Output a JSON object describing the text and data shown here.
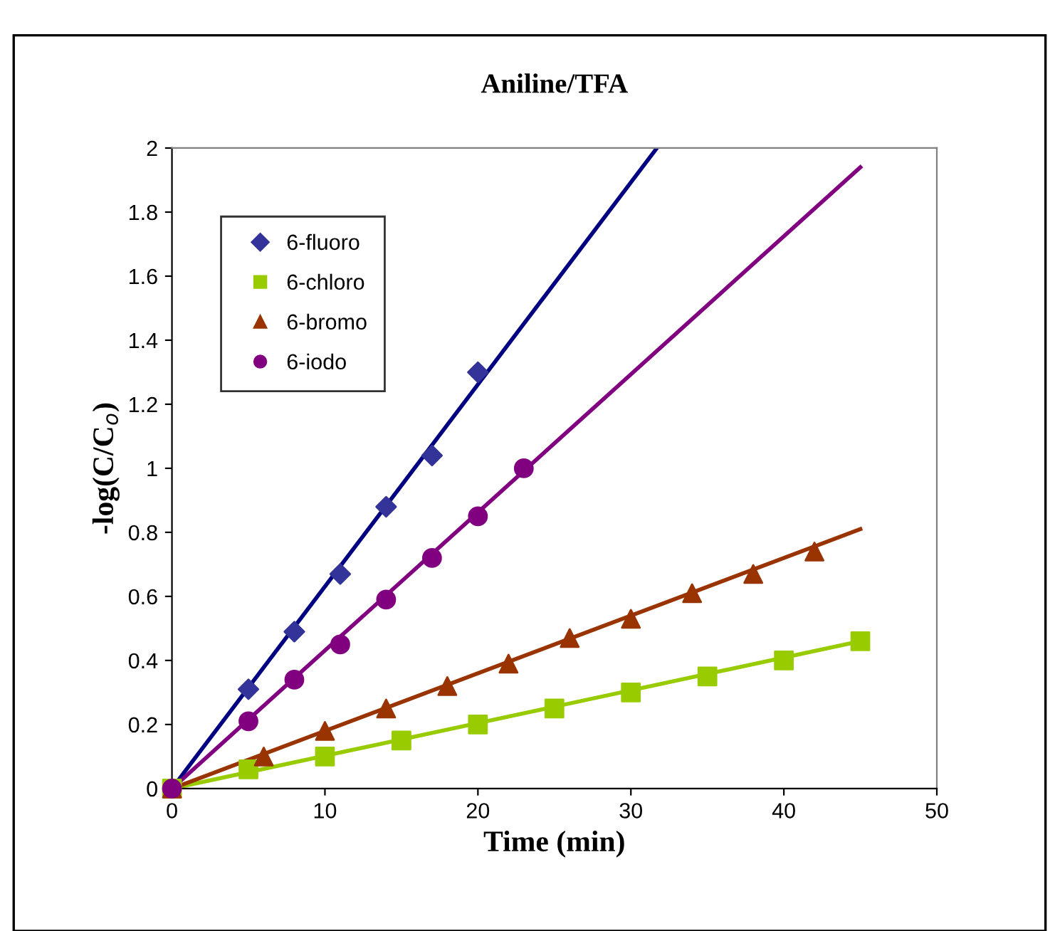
{
  "chart_data": {
    "type": "scatter",
    "title": "Aniline/TFA",
    "xlabel": "Time (min)",
    "ylabel": "-log(C/C$_{o}$)",
    "xlim": [
      0,
      50
    ],
    "xticks": [
      0,
      10,
      20,
      30,
      40,
      50
    ],
    "ylim": [
      0,
      2
    ],
    "yticks": [
      0,
      0.2,
      0.4,
      0.6,
      0.8,
      1,
      1.2,
      1.4,
      1.6,
      1.8,
      2
    ],
    "grid": false,
    "legend": "top left",
    "series": [
      {
        "name": "6-fluoro",
        "color": "#333399",
        "marker": "diamond",
        "x": [
          5,
          8,
          11,
          14,
          17,
          20
        ],
        "values": [
          0.31,
          0.49,
          0.67,
          0.88,
          1.04,
          1.3
        ]
      },
      {
        "name": "6-chloro",
        "color": "#99cc00",
        "marker": "square",
        "x": [
          0,
          5,
          10,
          15,
          20,
          25,
          30,
          35,
          40,
          45
        ],
        "values": [
          0,
          0.06,
          0.1,
          0.15,
          0.2,
          0.25,
          0.3,
          0.35,
          0.4,
          0.46
        ]
      },
      {
        "name": "6-bromo",
        "color": "#993300",
        "marker": "triangle",
        "x": [
          0,
          6,
          10,
          14,
          18,
          22,
          26,
          30,
          34,
          38,
          42
        ],
        "values": [
          0,
          0.1,
          0.18,
          0.25,
          0.32,
          0.39,
          0.47,
          0.53,
          0.61,
          0.67,
          0.74
        ]
      },
      {
        "name": "6-iodo",
        "color": "#800080",
        "marker": "circle",
        "x": [
          0,
          5,
          8,
          11,
          14,
          17,
          20,
          23
        ],
        "values": [
          0,
          0.21,
          0.34,
          0.45,
          0.59,
          0.72,
          0.85,
          1.0
        ]
      },
      {
        "type": "line",
        "color": "#000080",
        "line_style": "solid",
        "x": [
          0,
          31.7
        ],
        "values": [
          0,
          2
        ]
      },
      {
        "type": "line",
        "color": "#99cc00",
        "line_style": "solid",
        "x": [
          0,
          45
        ],
        "values": [
          0,
          0.46
        ]
      },
      {
        "type": "line",
        "color": "#993300",
        "line_style": "solid",
        "x": [
          0,
          45
        ],
        "values": [
          0,
          0.81
        ]
      },
      {
        "type": "line",
        "color": "#800080",
        "line_style": "solid",
        "x": [
          0,
          45
        ],
        "values": [
          0,
          1.94
        ]
      }
    ]
  }
}
